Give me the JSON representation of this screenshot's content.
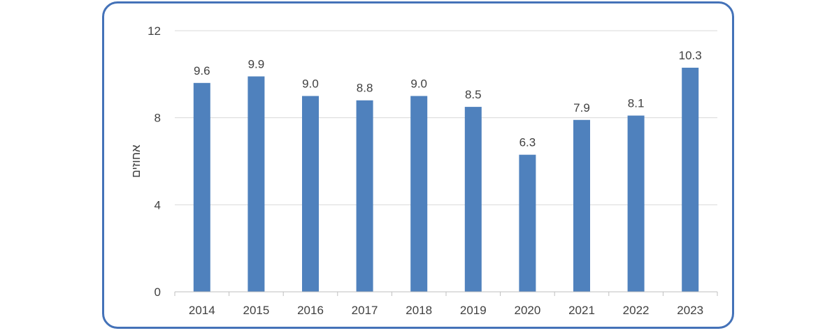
{
  "chart_data": {
    "type": "bar",
    "categories": [
      "2014",
      "2015",
      "2016",
      "2017",
      "2018",
      "2019",
      "2020",
      "2021",
      "2022",
      "2023"
    ],
    "values": [
      9.6,
      9.9,
      9.0,
      8.8,
      9.0,
      8.5,
      6.3,
      7.9,
      8.1,
      10.3
    ],
    "data_labels": [
      "9.6",
      "9.9",
      "9.0",
      "8.8",
      "9.0",
      "8.5",
      "6.3",
      "7.9",
      "8.1",
      "10.3"
    ],
    "ylabel": "אחוזים",
    "xlabel": "",
    "ylim": [
      0,
      12
    ],
    "yticks": [
      0,
      4,
      8,
      12
    ],
    "grid": true,
    "bar_color": "#4f81bd",
    "gridline_color": "#d9d9d9",
    "frame_color": "#4472b8"
  }
}
